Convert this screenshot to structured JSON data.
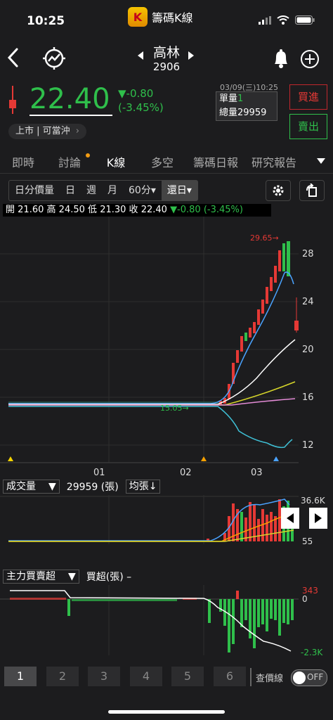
{
  "status_bar": {
    "time": "10:25",
    "app_name": "籌碼K線",
    "app_icon_letter": "K"
  },
  "header": {
    "stock_name": "高林",
    "stock_code": "2906"
  },
  "quote": {
    "price": "22.40",
    "change": "▼-0.80",
    "change_pct": "(-3.45%)",
    "market_tag": "上市 | 可當沖",
    "datetime": "03/09(三)10:25",
    "unit_volume_label": "單量",
    "unit_volume": "1",
    "total_volume_label": "總量",
    "total_volume": "29959",
    "buy_label": "買進",
    "sell_label": "賣出"
  },
  "tabs": [
    {
      "label": "即時"
    },
    {
      "label": "討論"
    },
    {
      "label": "K線"
    },
    {
      "label": "多空"
    },
    {
      "label": "籌碼日報"
    },
    {
      "label": "研究報告"
    }
  ],
  "period_bar": {
    "items": [
      "日分價量",
      "日",
      "週",
      "月",
      "60分▾",
      "還日▾"
    ],
    "active_index": 5
  },
  "ohlc_bar": {
    "open_label": "開",
    "open": "21.60",
    "high_label": "高",
    "high": "24.50",
    "low_label": "低",
    "low": "21.30",
    "close_label": "收",
    "close": "22.40",
    "change": "▼-0.80 (-3.45%)"
  },
  "price_chart": {
    "high_marker": "29.65→",
    "low_marker": "15.05→",
    "y_ticks": [
      "28",
      "24",
      "20",
      "16",
      "12"
    ],
    "x_ticks": [
      "01",
      "02",
      "03"
    ]
  },
  "volume_panel": {
    "selector": "成交量",
    "value": "29959 (張)",
    "avg_selector": "均張↓",
    "y_top": "36.6K",
    "y_bottom": "55"
  },
  "main_force_panel": {
    "selector": "主力買賣超",
    "value_label": "買超(張) –",
    "y_top": "343",
    "y_zero": "0",
    "y_bottom": "-2.3K"
  },
  "bottom_bar": {
    "pages": [
      "1",
      "2",
      "3",
      "4",
      "5",
      "6"
    ],
    "active_page": 0,
    "price_line_label": "查價線",
    "toggle_label": "OFF"
  },
  "colors": {
    "up": "#e53935",
    "down": "#2fbf4b",
    "ma5": "#4aa3ff",
    "ma20": "#ffffff",
    "ma60": "#d6d62a",
    "ma120": "#e38bd6"
  }
}
